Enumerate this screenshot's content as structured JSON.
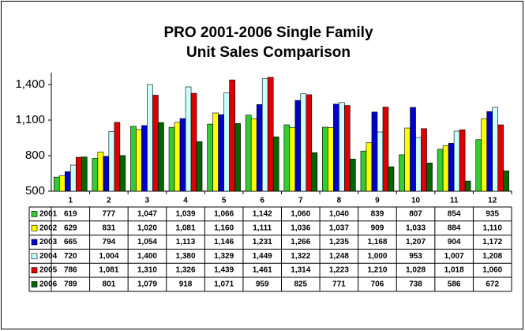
{
  "chart_data": {
    "type": "bar",
    "title": [
      "PRO 2001-2006 Single Family",
      "Unit Sales Comparison"
    ],
    "categories": [
      "1",
      "2",
      "3",
      "4",
      "5",
      "6",
      "7",
      "8",
      "9",
      "10",
      "11",
      "12"
    ],
    "ylim": [
      500,
      1500
    ],
    "yticks": [
      500,
      800,
      {
        "value": 1100,
        "label": "1,100"
      },
      {
        "value": 1400,
        "label": "1,400"
      }
    ],
    "series": [
      {
        "name": "2001",
        "color": "#33cc33",
        "values": [
          619,
          777,
          1047,
          1039,
          1066,
          1142,
          1060,
          1040,
          839,
          807,
          854,
          935
        ],
        "value_labels": [
          "619",
          "777",
          "1,047",
          "1,039",
          "1,066",
          "1,142",
          "1,060",
          "1,040",
          "839",
          "807",
          "854",
          "935"
        ]
      },
      {
        "name": "2002",
        "color": "#ffff00",
        "values": [
          629,
          831,
          1020,
          1081,
          1160,
          1111,
          1036,
          1037,
          909,
          1033,
          884,
          1110
        ],
        "value_labels": [
          "629",
          "831",
          "1,020",
          "1,081",
          "1,160",
          "1,111",
          "1,036",
          "1,037",
          "909",
          "1,033",
          "884",
          "1,110"
        ]
      },
      {
        "name": "2003",
        "color": "#0000cc",
        "values": [
          665,
          794,
          1054,
          1113,
          1146,
          1231,
          1266,
          1235,
          1168,
          1207,
          904,
          1172
        ],
        "value_labels": [
          "665",
          "794",
          "1,054",
          "1,113",
          "1,146",
          "1,231",
          "1,266",
          "1,235",
          "1,168",
          "1,207",
          "904",
          "1,172"
        ]
      },
      {
        "name": "2004",
        "color": "#ccffff",
        "values": [
          720,
          1004,
          1400,
          1380,
          1329,
          1449,
          1322,
          1248,
          1000,
          953,
          1007,
          1208
        ],
        "value_labels": [
          "720",
          "1,004",
          "1,400",
          "1,380",
          "1,329",
          "1,449",
          "1,322",
          "1,248",
          "1,000",
          "953",
          "1,007",
          "1,208"
        ]
      },
      {
        "name": "2005",
        "color": "#dd0000",
        "values": [
          786,
          1081,
          1310,
          1326,
          1439,
          1461,
          1314,
          1223,
          1210,
          1028,
          1018,
          1060
        ],
        "value_labels": [
          "786",
          "1,081",
          "1,310",
          "1,326",
          "1,439",
          "1,461",
          "1,314",
          "1,223",
          "1,210",
          "1,028",
          "1,018",
          "1,060"
        ]
      },
      {
        "name": "2006",
        "color": "#006600",
        "values": [
          789,
          801,
          1079,
          918,
          1071,
          959,
          825,
          771,
          706,
          738,
          586,
          672
        ],
        "value_labels": [
          "789",
          "801",
          "1,079",
          "918",
          "1,071",
          "959",
          "825",
          "771",
          "706",
          "738",
          "586",
          "672"
        ]
      }
    ]
  }
}
